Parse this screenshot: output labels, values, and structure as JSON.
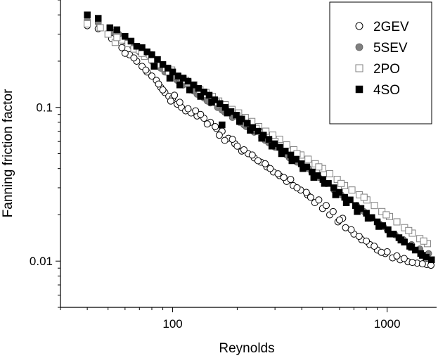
{
  "chart_data": {
    "type": "scatter",
    "title": "",
    "xlabel": "Reynolds",
    "ylabel": "Fanning friction factor",
    "xscale": "log",
    "yscale": "log",
    "xlim": [
      30,
      1700
    ],
    "ylim": [
      0.005,
      0.5
    ],
    "x_ticks": [
      {
        "value": 100,
        "label": "100"
      },
      {
        "value": 1000,
        "label": "1000"
      }
    ],
    "y_ticks": [
      {
        "value": 0.01,
        "label": "0.01"
      },
      {
        "value": 0.1,
        "label": "0.1"
      }
    ],
    "grid": false,
    "legend_position": "top-right",
    "series": [
      {
        "name": "2GEV",
        "marker": "open-circle",
        "color": "#000000",
        "points": [
          [
            40,
            0.34
          ],
          [
            45,
            0.325
          ],
          [
            52,
            0.28
          ],
          [
            58,
            0.245
          ],
          [
            63,
            0.22
          ],
          [
            68,
            0.2
          ],
          [
            72,
            0.185
          ],
          [
            76,
            0.17
          ],
          [
            80,
            0.16
          ],
          [
            84,
            0.15
          ],
          [
            88,
            0.135
          ],
          [
            92,
            0.125
          ],
          [
            96,
            0.118
          ],
          [
            100,
            0.115
          ],
          [
            105,
            0.105
          ],
          [
            110,
            0.1
          ],
          [
            115,
            0.095
          ],
          [
            122,
            0.092
          ],
          [
            130,
            0.088
          ],
          [
            140,
            0.085
          ],
          [
            150,
            0.08
          ],
          [
            160,
            0.073
          ],
          [
            170,
            0.07
          ],
          [
            182,
            0.063
          ],
          [
            195,
            0.058
          ],
          [
            210,
            0.052
          ],
          [
            225,
            0.05
          ],
          [
            240,
            0.047
          ],
          [
            258,
            0.044
          ],
          [
            275,
            0.041
          ],
          [
            295,
            0.038
          ],
          [
            315,
            0.036
          ],
          [
            340,
            0.033
          ],
          [
            365,
            0.031
          ],
          [
            395,
            0.029
          ],
          [
            425,
            0.027
          ],
          [
            460,
            0.024
          ],
          [
            500,
            0.022
          ],
          [
            540,
            0.02
          ],
          [
            590,
            0.018
          ],
          [
            640,
            0.0165
          ],
          [
            700,
            0.015
          ],
          [
            760,
            0.0138
          ],
          [
            830,
            0.0128
          ],
          [
            900,
            0.0118
          ],
          [
            980,
            0.0112
          ],
          [
            1060,
            0.0105
          ],
          [
            1150,
            0.0102
          ],
          [
            1250,
            0.0099
          ],
          [
            1380,
            0.0097
          ],
          [
            1530,
            0.0095
          ],
          [
            60,
            0.225
          ],
          [
            75,
            0.175
          ],
          [
            90,
            0.13
          ],
          [
            118,
            0.098
          ],
          [
            145,
            0.078
          ],
          [
            165,
            0.066
          ],
          [
            175,
            0.061
          ],
          [
            235,
            0.049
          ],
          [
            270,
            0.043
          ],
          [
            330,
            0.035
          ],
          [
            380,
            0.03
          ],
          [
            480,
            0.025
          ],
          [
            560,
            0.021
          ],
          [
            680,
            0.016
          ],
          [
            870,
            0.0125
          ],
          [
            1110,
            0.0108
          ],
          [
            1310,
            0.0098
          ],
          [
            66,
            0.21
          ],
          [
            86,
            0.142
          ],
          [
            108,
            0.108
          ],
          [
            128,
            0.095
          ],
          [
            158,
            0.075
          ],
          [
            200,
            0.056
          ],
          [
            250,
            0.045
          ],
          [
            310,
            0.037
          ],
          [
            420,
            0.028
          ],
          [
            520,
            0.023
          ],
          [
            620,
            0.019
          ],
          [
            800,
            0.0135
          ],
          [
            1000,
            0.0115
          ],
          [
            1200,
            0.0104
          ],
          [
            1460,
            0.0096
          ],
          [
            1600,
            0.0094
          ],
          [
            98,
            0.11
          ],
          [
            102,
            0.12
          ],
          [
            135,
            0.09
          ],
          [
            190,
            0.062
          ],
          [
            215,
            0.053
          ],
          [
            285,
            0.04
          ],
          [
            355,
            0.034
          ],
          [
            440,
            0.026
          ],
          [
            600,
            0.0185
          ],
          [
            740,
            0.0145
          ],
          [
            940,
            0.0114
          ]
        ]
      },
      {
        "name": "5SEV",
        "marker": "filled-circle",
        "color": "#808080",
        "points": [
          [
            40,
            0.37
          ],
          [
            45,
            0.355
          ],
          [
            52,
            0.31
          ],
          [
            56,
            0.3
          ],
          [
            60,
            0.27
          ],
          [
            65,
            0.25
          ],
          [
            70,
            0.23
          ],
          [
            75,
            0.215
          ],
          [
            80,
            0.2
          ],
          [
            86,
            0.185
          ],
          [
            92,
            0.17
          ],
          [
            98,
            0.16
          ],
          [
            105,
            0.15
          ],
          [
            112,
            0.14
          ],
          [
            120,
            0.13
          ],
          [
            130,
            0.122
          ],
          [
            140,
            0.115
          ],
          [
            150,
            0.107
          ],
          [
            162,
            0.1
          ],
          [
            175,
            0.093
          ],
          [
            190,
            0.086
          ],
          [
            205,
            0.08
          ],
          [
            220,
            0.075
          ],
          [
            240,
            0.069
          ],
          [
            260,
            0.064
          ],
          [
            280,
            0.059
          ],
          [
            300,
            0.055
          ],
          [
            325,
            0.051
          ],
          [
            350,
            0.047
          ],
          [
            380,
            0.044
          ],
          [
            410,
            0.041
          ],
          [
            445,
            0.038
          ],
          [
            480,
            0.035
          ],
          [
            520,
            0.032
          ],
          [
            565,
            0.029
          ],
          [
            610,
            0.027
          ],
          [
            660,
            0.025
          ],
          [
            720,
            0.023
          ],
          [
            780,
            0.021
          ],
          [
            850,
            0.019
          ],
          [
            920,
            0.0175
          ],
          [
            1000,
            0.016
          ],
          [
            1090,
            0.0148
          ],
          [
            1190,
            0.0138
          ],
          [
            1300,
            0.0128
          ],
          [
            1420,
            0.012
          ],
          [
            1560,
            0.0112
          ],
          [
            88,
            0.18
          ],
          [
            102,
            0.155
          ],
          [
            125,
            0.128
          ],
          [
            145,
            0.11
          ],
          [
            170,
            0.096
          ],
          [
            215,
            0.077
          ],
          [
            270,
            0.061
          ],
          [
            340,
            0.049
          ],
          [
            430,
            0.04
          ],
          [
            590,
            0.028
          ],
          [
            750,
            0.022
          ],
          [
            960,
            0.0168
          ]
        ]
      },
      {
        "name": "2PO",
        "marker": "open-square",
        "color": "#808080",
        "points": [
          [
            40,
            0.35
          ],
          [
            46,
            0.33
          ],
          [
            50,
            0.3
          ],
          [
            54,
            0.265
          ],
          [
            58,
            0.275
          ],
          [
            62,
            0.26
          ],
          [
            66,
            0.24
          ],
          [
            70,
            0.235
          ],
          [
            74,
            0.215
          ],
          [
            78,
            0.22
          ],
          [
            83,
            0.2
          ],
          [
            88,
            0.19
          ],
          [
            93,
            0.18
          ],
          [
            99,
            0.175
          ],
          [
            105,
            0.16
          ],
          [
            111,
            0.155
          ],
          [
            118,
            0.145
          ],
          [
            126,
            0.14
          ],
          [
            134,
            0.13
          ],
          [
            143,
            0.125
          ],
          [
            153,
            0.118
          ],
          [
            164,
            0.11
          ],
          [
            176,
            0.104
          ],
          [
            189,
            0.097
          ],
          [
            203,
            0.092
          ],
          [
            218,
            0.086
          ],
          [
            234,
            0.081
          ],
          [
            252,
            0.075
          ],
          [
            272,
            0.07
          ],
          [
            293,
            0.066
          ],
          [
            315,
            0.062
          ],
          [
            340,
            0.057
          ],
          [
            367,
            0.053
          ],
          [
            396,
            0.049
          ],
          [
            428,
            0.046
          ],
          [
            462,
            0.043
          ],
          [
            500,
            0.04
          ],
          [
            540,
            0.037
          ],
          [
            585,
            0.034
          ],
          [
            633,
            0.031
          ],
          [
            685,
            0.029
          ],
          [
            742,
            0.027
          ],
          [
            804,
            0.025
          ],
          [
            872,
            0.023
          ],
          [
            945,
            0.021
          ],
          [
            1025,
            0.0195
          ],
          [
            1110,
            0.018
          ],
          [
            1205,
            0.0165
          ],
          [
            1310,
            0.0152
          ],
          [
            1420,
            0.014
          ],
          [
            1540,
            0.013
          ],
          [
            55,
            0.285
          ],
          [
            72,
            0.225
          ],
          [
            80,
            0.205
          ],
          [
            96,
            0.17
          ],
          [
            115,
            0.15
          ],
          [
            140,
            0.122
          ],
          [
            160,
            0.108
          ],
          [
            200,
            0.088
          ],
          [
            245,
            0.073
          ],
          [
            300,
            0.06
          ],
          [
            380,
            0.05
          ],
          [
            480,
            0.041
          ],
          [
            610,
            0.032
          ],
          [
            780,
            0.026
          ],
          [
            990,
            0.02
          ],
          [
            1260,
            0.0158
          ],
          [
            1480,
            0.0135
          ]
        ]
      },
      {
        "name": "4SO",
        "marker": "filled-square",
        "color": "#000000",
        "points": [
          [
            40,
            0.4
          ],
          [
            45,
            0.38
          ],
          [
            51,
            0.33
          ],
          [
            55,
            0.32
          ],
          [
            60,
            0.29
          ],
          [
            64,
            0.27
          ],
          [
            68,
            0.25
          ],
          [
            72,
            0.245
          ],
          [
            76,
            0.23
          ],
          [
            80,
            0.22
          ],
          [
            85,
            0.205
          ],
          [
            90,
            0.19
          ],
          [
            95,
            0.18
          ],
          [
            100,
            0.17
          ],
          [
            106,
            0.16
          ],
          [
            112,
            0.155
          ],
          [
            118,
            0.148
          ],
          [
            125,
            0.14
          ],
          [
            132,
            0.133
          ],
          [
            140,
            0.126
          ],
          [
            148,
            0.12
          ],
          [
            157,
            0.112
          ],
          [
            166,
            0.106
          ],
          [
            176,
            0.1
          ],
          [
            187,
            0.094
          ],
          [
            198,
            0.089
          ],
          [
            210,
            0.084
          ],
          [
            223,
            0.079
          ],
          [
            236,
            0.074
          ],
          [
            250,
            0.07
          ],
          [
            265,
            0.066
          ],
          [
            281,
            0.062
          ],
          [
            298,
            0.058
          ],
          [
            316,
            0.055
          ],
          [
            335,
            0.052
          ],
          [
            355,
            0.049
          ],
          [
            376,
            0.046
          ],
          [
            398,
            0.043
          ],
          [
            422,
            0.041
          ],
          [
            447,
            0.038
          ],
          [
            474,
            0.036
          ],
          [
            502,
            0.034
          ],
          [
            532,
            0.032
          ],
          [
            564,
            0.03
          ],
          [
            598,
            0.028
          ],
          [
            634,
            0.026
          ],
          [
            672,
            0.025
          ],
          [
            712,
            0.023
          ],
          [
            755,
            0.022
          ],
          [
            800,
            0.0205
          ],
          [
            848,
            0.0192
          ],
          [
            899,
            0.018
          ],
          [
            953,
            0.017
          ],
          [
            1010,
            0.016
          ],
          [
            1070,
            0.015
          ],
          [
            1135,
            0.0142
          ],
          [
            1203,
            0.0133
          ],
          [
            1275,
            0.0125
          ],
          [
            1352,
            0.0118
          ],
          [
            1433,
            0.0112
          ],
          [
            1519,
            0.0106
          ],
          [
            1610,
            0.0102
          ],
          [
            82,
            0.185
          ],
          [
            97,
            0.155
          ],
          [
            108,
            0.14
          ],
          [
            120,
            0.13
          ],
          [
            135,
            0.118
          ],
          [
            152,
            0.108
          ],
          [
            170,
            0.077
          ],
          [
            180,
            0.092
          ],
          [
            205,
            0.081
          ],
          [
            230,
            0.071
          ],
          [
            260,
            0.063
          ],
          [
            290,
            0.056
          ],
          [
            322,
            0.05
          ],
          [
            360,
            0.045
          ],
          [
            405,
            0.04
          ],
          [
            455,
            0.035
          ],
          [
            510,
            0.032
          ],
          [
            575,
            0.027
          ],
          [
            645,
            0.024
          ],
          [
            725,
            0.021
          ],
          [
            815,
            0.019
          ],
          [
            915,
            0.0168
          ],
          [
            1030,
            0.015
          ],
          [
            1160,
            0.0137
          ],
          [
            1300,
            0.0123
          ],
          [
            1460,
            0.0109
          ]
        ]
      }
    ]
  }
}
